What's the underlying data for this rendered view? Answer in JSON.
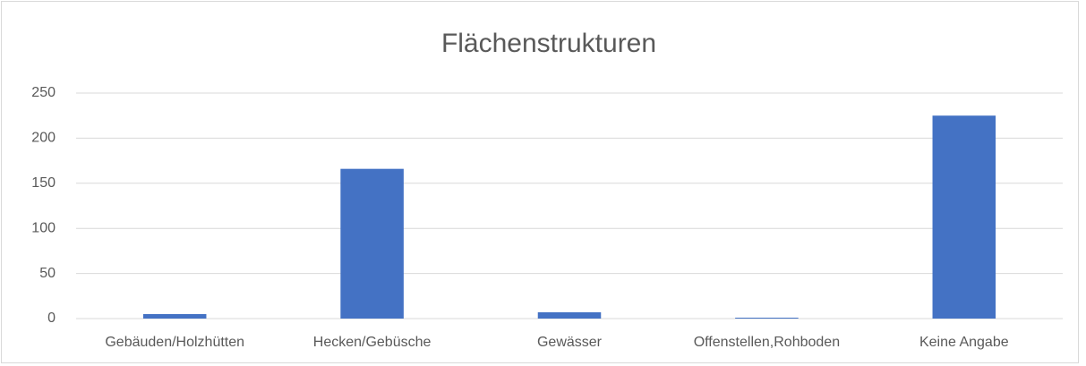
{
  "chart_data": {
    "type": "bar",
    "title": "Flächenstrukturen",
    "categories": [
      "Gebäuden/Holzhütten",
      "Hecken/Gebüsche",
      "Gewässer",
      "Offenstellen,Rohboden",
      "Keine Angabe"
    ],
    "values": [
      5,
      166,
      7,
      1,
      225
    ],
    "color": "#4472c4",
    "ylim": [
      0,
      250
    ],
    "yticks": [
      0,
      50,
      100,
      150,
      200,
      250
    ],
    "grid": true
  }
}
